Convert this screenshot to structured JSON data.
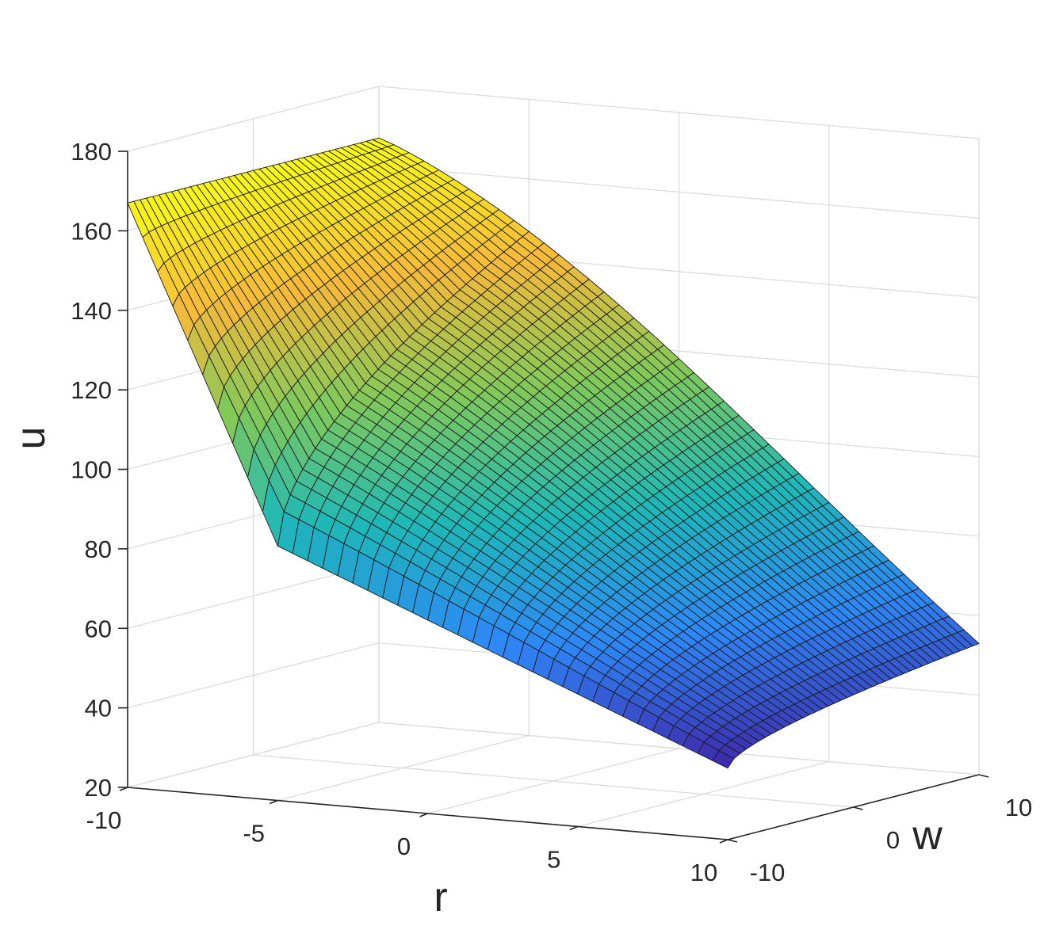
{
  "chart_data": {
    "type": "surface",
    "title": "",
    "xlabel": "r",
    "ylabel": "w",
    "zlabel": "u",
    "xlim": [
      -10,
      10
    ],
    "ylim": [
      -10,
      10
    ],
    "zlim": [
      20,
      180
    ],
    "x_ticks": [
      "-10",
      "-5",
      "0",
      "5",
      "10"
    ],
    "y_ticks": [
      "-10",
      "0",
      "10"
    ],
    "z_ticks": [
      "20",
      "40",
      "60",
      "80",
      "100",
      "120",
      "140",
      "160",
      "180"
    ],
    "grid": true,
    "colormap": "parula",
    "colormap_stops": [
      "#3e26a8",
      "#2e87f7",
      "#1eb8b8",
      "#80c95b",
      "#f6ba3a",
      "#f9fb15"
    ],
    "surface_grid_size": [
      40,
      40
    ],
    "corner_values": {
      "r_-10_w_-10": 167,
      "r_-10_w_10": 167,
      "r_10_w_-10": 38,
      "r_10_w_10": 53,
      "r_-5_w_-10": 84
    }
  }
}
